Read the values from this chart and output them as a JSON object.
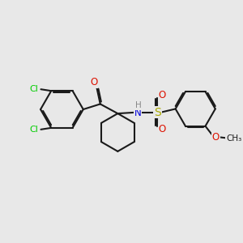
{
  "bg_color": "#e8e8e8",
  "bond_color": "#1a1a1a",
  "cl_color": "#00cc00",
  "o_color": "#dd1100",
  "n_color": "#0000dd",
  "s_color": "#aaaa00",
  "lw": 1.5,
  "dbl_off": 0.055,
  "figsize": [
    3.0,
    3.0
  ],
  "dpi": 100,
  "xlim": [
    0,
    10
  ],
  "ylim": [
    0,
    10
  ]
}
